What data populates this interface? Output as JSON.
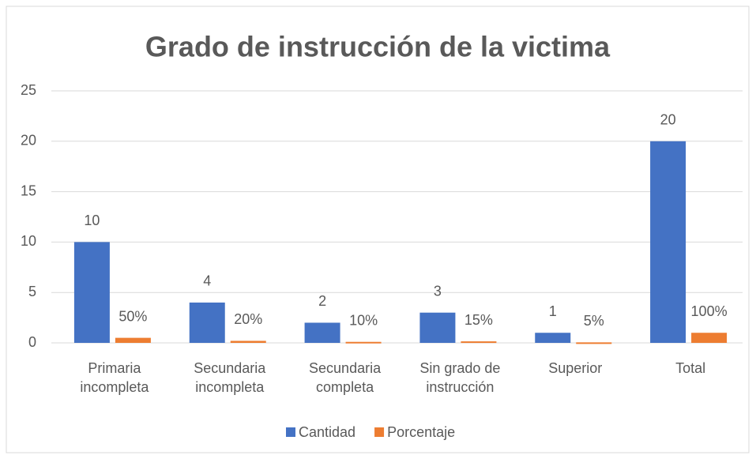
{
  "chart_data": {
    "type": "bar",
    "title": "Grado de instrucción de la victima",
    "categories": [
      "Primaria incompleta",
      "Secundaria incompleta",
      "Secundaria completa",
      "Sin grado de instrucción",
      "Superior",
      "Total"
    ],
    "series": [
      {
        "name": "Cantidad",
        "color": "#4472c4",
        "values": [
          10,
          4,
          2,
          3,
          1,
          20
        ]
      },
      {
        "name": "Porcentaje",
        "color": "#ed7d31",
        "values": [
          0.5,
          0.2,
          0.1,
          0.15,
          0.05,
          1
        ],
        "value_labels": [
          "50%",
          "20%",
          "10%",
          "15%",
          "5%",
          "100%"
        ]
      }
    ],
    "ylim": [
      0,
      25
    ],
    "yticks": [
      0,
      5,
      10,
      15,
      20,
      25
    ],
    "grid": true,
    "legend": "bottom"
  }
}
